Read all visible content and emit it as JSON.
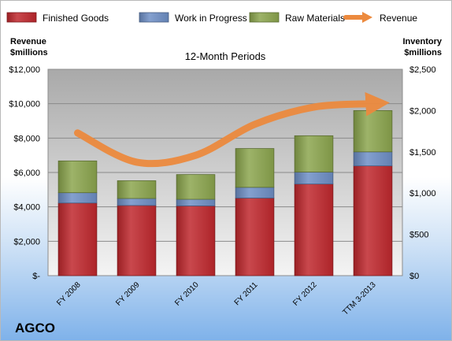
{
  "chart_data": {
    "type": "bar",
    "subtitle": "12-Month Periods",
    "company": "AGCO",
    "categories": [
      "FY 2008",
      "FY 2009",
      "FY 2010",
      "FY 2011",
      "FY 2012",
      "TTM 3-2013"
    ],
    "stacked_series": [
      {
        "name": "Finished Goods",
        "color": "#c0282d",
        "values": [
          880,
          850,
          845,
          940,
          1110,
          1330
        ]
      },
      {
        "name": "Work in Progress",
        "color": "#6e8fc6",
        "values": [
          125,
          85,
          80,
          130,
          145,
          170
        ]
      },
      {
        "name": "Raw Materials",
        "color": "#8ca64e",
        "values": [
          385,
          215,
          300,
          470,
          440,
          500
        ]
      }
    ],
    "line_series": {
      "name": "Revenue",
      "color": "#ec8a3e",
      "values": [
        8300,
        6600,
        7000,
        8800,
        9800,
        10000
      ]
    },
    "left_axis": {
      "title_line1": "Revenue",
      "title_line2": "$millions",
      "ylim": [
        0,
        12000
      ],
      "ticks": [
        "$-",
        "$2,000",
        "$4,000",
        "$6,000",
        "$8,000",
        "$10,000",
        "$12,000"
      ]
    },
    "right_axis": {
      "title_line1": "Inventory",
      "title_line2": "$millions",
      "ylim": [
        0,
        2500
      ],
      "ticks": [
        "$0",
        "$500",
        "$1,000",
        "$1,500",
        "$2,000",
        "$2,500"
      ]
    },
    "grid": true,
    "legend_position": "top"
  }
}
